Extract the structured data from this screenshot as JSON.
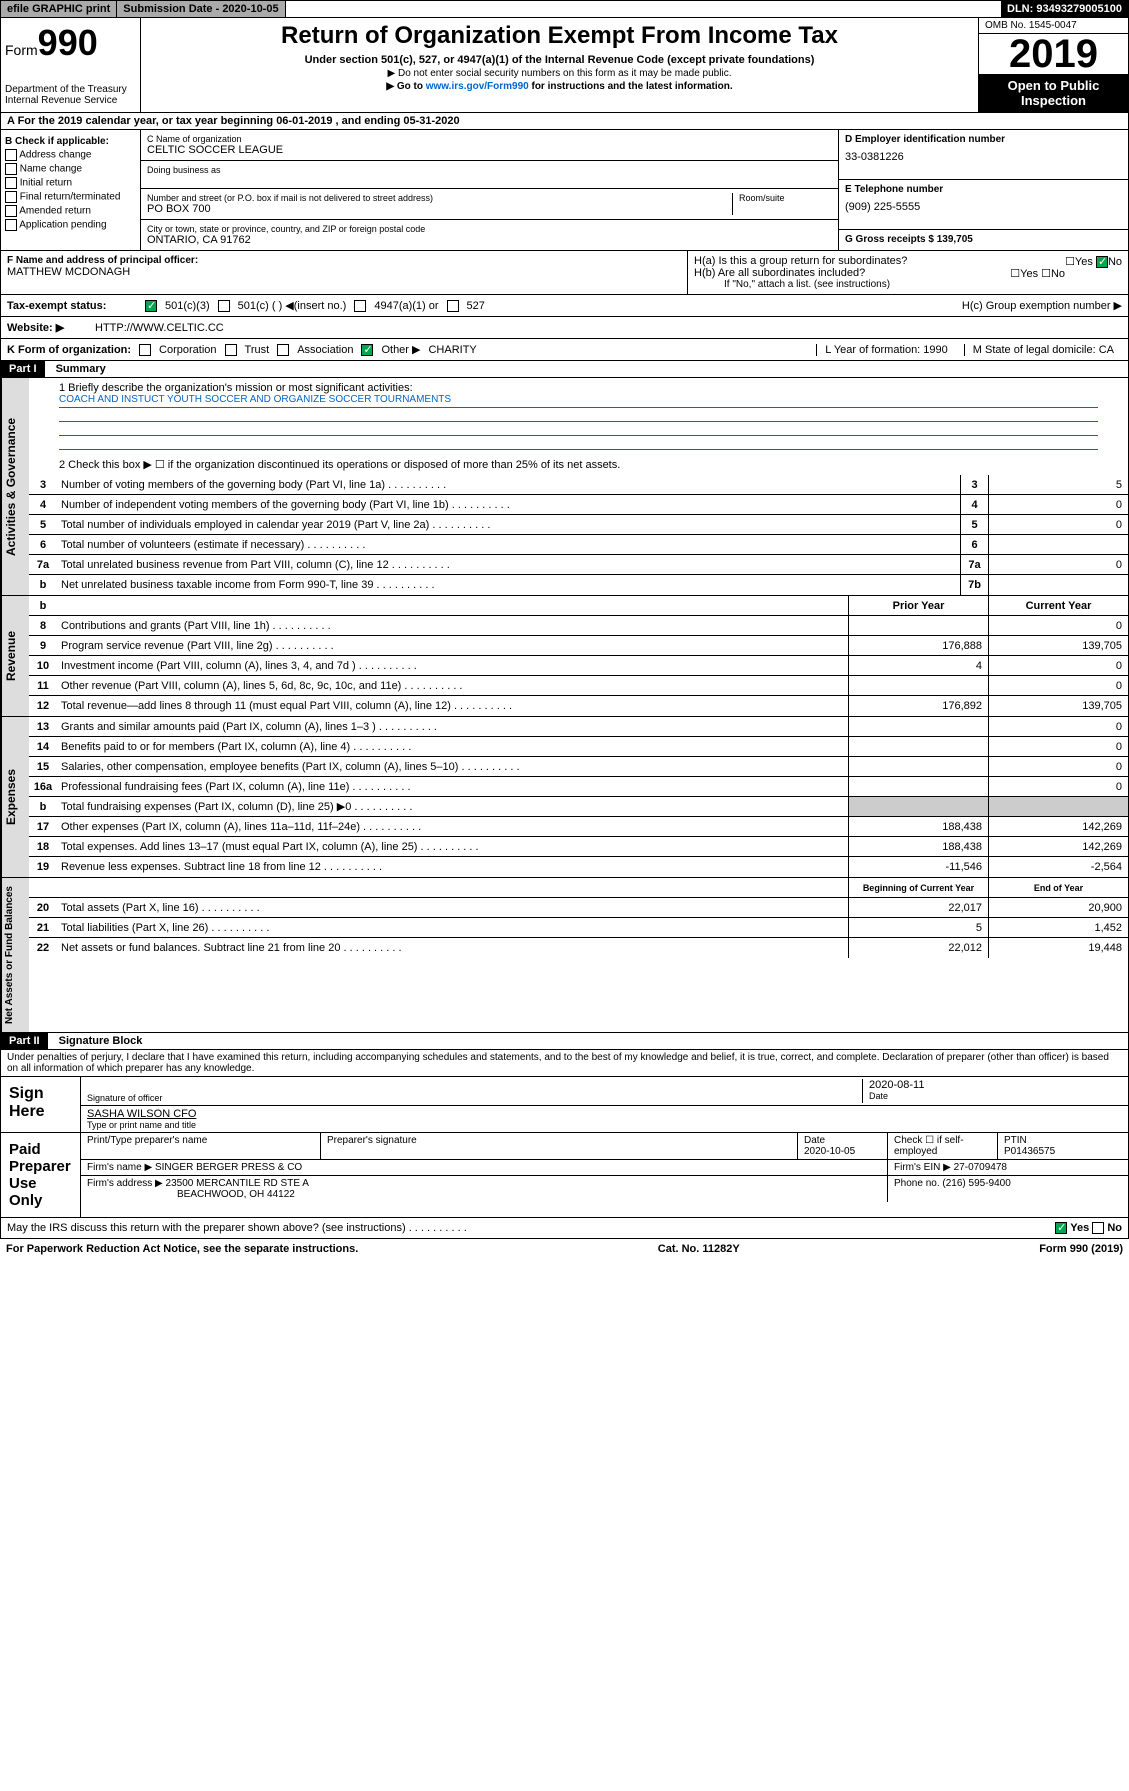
{
  "topbar": {
    "efile": "efile GRAPHIC print",
    "submission_label": "Submission Date - 2020-10-05",
    "dln": "DLN: 93493279005100"
  },
  "header": {
    "form_prefix": "Form",
    "form_number": "990",
    "title": "Return of Organization Exempt From Income Tax",
    "subtitle": "Under section 501(c), 527, or 4947(a)(1) of the Internal Revenue Code (except private foundations)",
    "note1": "▶ Do not enter social security numbers on this form as it may be made public.",
    "note2_pre": "▶ Go to ",
    "note2_link": "www.irs.gov/Form990",
    "note2_post": " for instructions and the latest information.",
    "dept": "Department of the Treasury\nInternal Revenue Service",
    "omb": "OMB No. 1545-0047",
    "year": "2019",
    "open": "Open to Public Inspection"
  },
  "period": "A For the 2019 calendar year, or tax year beginning 06-01-2019   , and ending 05-31-2020",
  "checkboxes": {
    "title": "B Check if applicable:",
    "items": [
      "Address change",
      "Name change",
      "Initial return",
      "Final return/terminated",
      "Amended return",
      "Application pending"
    ]
  },
  "org": {
    "name_label": "C Name of organization",
    "name": "CELTIC SOCCER LEAGUE",
    "dba_label": "Doing business as",
    "dba": "",
    "addr_label": "Number and street (or P.O. box if mail is not delivered to street address)",
    "room_label": "Room/suite",
    "addr": "PO BOX 700",
    "city_label": "City or town, state or province, country, and ZIP or foreign postal code",
    "city": "ONTARIO, CA  91762"
  },
  "d_col": {
    "ein_label": "D Employer identification number",
    "ein": "33-0381226",
    "phone_label": "E Telephone number",
    "phone": "(909) 225-5555",
    "gross_label": "G Gross receipts $ 139,705"
  },
  "f_section": {
    "f_label": "F  Name and address of principal officer:",
    "f_name": "MATTHEW MCDONAGH",
    "ha": "H(a)  Is this a group return for subordinates?",
    "hb": "H(b)  Are all subordinates included?",
    "hb_note": "If \"No,\" attach a list. (see instructions)",
    "hc": "H(c)  Group exemption number ▶"
  },
  "status": {
    "label": "Tax-exempt status:",
    "opt1": "501(c)(3)",
    "opt2": "501(c) (  ) ◀(insert no.)",
    "opt3": "4947(a)(1) or",
    "opt4": "527"
  },
  "website": {
    "label": "Website: ▶",
    "val": "HTTP://WWW.CELTIC.CC"
  },
  "kform": {
    "label": "K Form of organization:",
    "opts": [
      "Corporation",
      "Trust",
      "Association",
      "Other ▶"
    ],
    "other_val": "CHARITY",
    "l_label": "L Year of formation: 1990",
    "m_label": "M State of legal domicile: CA"
  },
  "part1": {
    "header": "Part I",
    "title": "Summary",
    "line1_label": "1  Briefly describe the organization's mission or most significant activities:",
    "mission": "COACH AND INSTUCT YOUTH SOCCER AND ORGANIZE SOCCER TOURNAMENTS",
    "line2": "2   Check this box ▶ ☐  if the organization discontinued its operations or disposed of more than 25% of its net assets.",
    "sections": {
      "governance": "Activities & Governance",
      "revenue": "Revenue",
      "expenses": "Expenses",
      "netassets": "Net Assets or Fund Balances"
    },
    "governance_lines": [
      {
        "n": "3",
        "t": "Number of voting members of the governing body (Part VI, line 1a)",
        "box": "3",
        "v": "5"
      },
      {
        "n": "4",
        "t": "Number of independent voting members of the governing body (Part VI, line 1b)",
        "box": "4",
        "v": "0"
      },
      {
        "n": "5",
        "t": "Total number of individuals employed in calendar year 2019 (Part V, line 2a)",
        "box": "5",
        "v": "0"
      },
      {
        "n": "6",
        "t": "Total number of volunteers (estimate if necessary)",
        "box": "6",
        "v": ""
      },
      {
        "n": "7a",
        "t": "Total unrelated business revenue from Part VIII, column (C), line 12",
        "box": "7a",
        "v": "0"
      },
      {
        "n": "b",
        "t": "Net unrelated business taxable income from Form 990-T, line 39",
        "box": "7b",
        "v": ""
      }
    ],
    "col_headers": {
      "prior": "Prior Year",
      "current": "Current Year"
    },
    "revenue_lines": [
      {
        "n": "8",
        "t": "Contributions and grants (Part VIII, line 1h)",
        "p": "",
        "c": "0"
      },
      {
        "n": "9",
        "t": "Program service revenue (Part VIII, line 2g)",
        "p": "176,888",
        "c": "139,705"
      },
      {
        "n": "10",
        "t": "Investment income (Part VIII, column (A), lines 3, 4, and 7d )",
        "p": "4",
        "c": "0"
      },
      {
        "n": "11",
        "t": "Other revenue (Part VIII, column (A), lines 5, 6d, 8c, 9c, 10c, and 11e)",
        "p": "",
        "c": "0"
      },
      {
        "n": "12",
        "t": "Total revenue—add lines 8 through 11 (must equal Part VIII, column (A), line 12)",
        "p": "176,892",
        "c": "139,705"
      }
    ],
    "expense_lines": [
      {
        "n": "13",
        "t": "Grants and similar amounts paid (Part IX, column (A), lines 1–3 )",
        "p": "",
        "c": "0"
      },
      {
        "n": "14",
        "t": "Benefits paid to or for members (Part IX, column (A), line 4)",
        "p": "",
        "c": "0"
      },
      {
        "n": "15",
        "t": "Salaries, other compensation, employee benefits (Part IX, column (A), lines 5–10)",
        "p": "",
        "c": "0"
      },
      {
        "n": "16a",
        "t": "Professional fundraising fees (Part IX, column (A), line 11e)",
        "p": "",
        "c": "0"
      },
      {
        "n": "b",
        "t": "Total fundraising expenses (Part IX, column (D), line 25) ▶0",
        "p": "grey",
        "c": "grey"
      },
      {
        "n": "17",
        "t": "Other expenses (Part IX, column (A), lines 11a–11d, 11f–24e)",
        "p": "188,438",
        "c": "142,269"
      },
      {
        "n": "18",
        "t": "Total expenses. Add lines 13–17 (must equal Part IX, column (A), line 25)",
        "p": "188,438",
        "c": "142,269"
      },
      {
        "n": "19",
        "t": "Revenue less expenses. Subtract line 18 from line 12",
        "p": "-11,546",
        "c": "-2,564"
      }
    ],
    "net_headers": {
      "begin": "Beginning of Current Year",
      "end": "End of Year"
    },
    "net_lines": [
      {
        "n": "20",
        "t": "Total assets (Part X, line 16)",
        "p": "22,017",
        "c": "20,900"
      },
      {
        "n": "21",
        "t": "Total liabilities (Part X, line 26)",
        "p": "5",
        "c": "1,452"
      },
      {
        "n": "22",
        "t": "Net assets or fund balances. Subtract line 21 from line 20",
        "p": "22,012",
        "c": "19,448"
      }
    ]
  },
  "part2": {
    "header": "Part II",
    "title": "Signature Block",
    "penalty": "Under penalties of perjury, I declare that I have examined this return, including accompanying schedules and statements, and to the best of my knowledge and belief, it is true, correct, and complete. Declaration of preparer (other than officer) is based on all information of which preparer has any knowledge."
  },
  "sign": {
    "label": "Sign Here",
    "sig_label": "Signature of officer",
    "date": "2020-08-11",
    "date_label": "Date",
    "name": "SASHA WILSON  CFO",
    "name_label": "Type or print name and title"
  },
  "prep": {
    "label": "Paid Preparer Use Only",
    "h1": "Print/Type preparer's name",
    "h2": "Preparer's signature",
    "h3": "Date",
    "h3v": "2020-10-05",
    "h4": "Check ☐ if self-employed",
    "h5": "PTIN",
    "h5v": "P01436575",
    "firm_label": "Firm's name    ▶",
    "firm": "SINGER BERGER PRESS & CO",
    "firm_ein_label": "Firm's EIN ▶",
    "firm_ein": "27-0709478",
    "addr_label": "Firm's address ▶",
    "addr1": "23500 MERCANTILE RD STE A",
    "addr2": "BEACHWOOD, OH  44122",
    "phone_label": "Phone no.",
    "phone": "(216) 595-9400"
  },
  "discuss": "May the IRS discuss this return with the preparer shown above? (see instructions)",
  "footer": {
    "left": "For Paperwork Reduction Act Notice, see the separate instructions.",
    "mid": "Cat. No. 11282Y",
    "right": "Form 990 (2019)"
  }
}
